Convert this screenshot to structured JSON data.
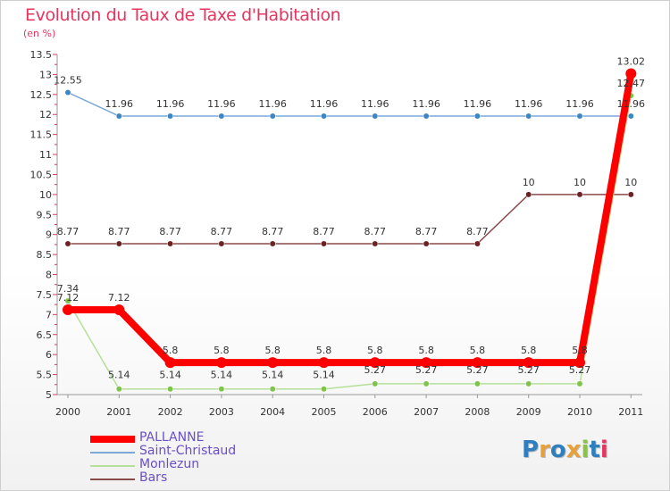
{
  "title": "Evolution du Taux de Taxe d'Habitation",
  "subtitle": "(en %)",
  "logo": {
    "text": "Proxiti",
    "letters": [
      "P",
      "r",
      "o",
      "x",
      "i",
      "t",
      "i"
    ],
    "colors": [
      "#2f7fc0",
      "#e8a13a",
      "#2f7fc0",
      "#e8a13a",
      "#8bc34a",
      "#2f7fc0",
      "#e4365f"
    ]
  },
  "chart_data": {
    "type": "line",
    "title": "Evolution du Taux de Taxe d'Habitation",
    "ylabel": "(en %)",
    "xlabel": "",
    "x": [
      "2000",
      "2001",
      "2002",
      "2003",
      "2004",
      "2005",
      "2006",
      "2007",
      "2008",
      "2009",
      "2010",
      "2011"
    ],
    "ylim": [
      5,
      13.5
    ],
    "yticks": [
      "5",
      "5.5",
      "6",
      "6.5",
      "7",
      "7.5",
      "8",
      "8.5",
      "9",
      "9.5",
      "10",
      "10.5",
      "11",
      "11.5",
      "12",
      "12.5",
      "13",
      "13.5"
    ],
    "grid": false,
    "legend_position": "bottom-left",
    "series": [
      {
        "name": "PALLANNE",
        "color": "#ff0000",
        "emphasis": true,
        "values": [
          7.12,
          7.12,
          5.8,
          5.8,
          5.8,
          5.8,
          5.8,
          5.8,
          5.8,
          5.8,
          5.8,
          13.02
        ],
        "labels": [
          "7.12",
          "7.12",
          "5.8",
          "5.8",
          "5.8",
          "5.8",
          "5.8",
          "5.8",
          "5.8",
          "5.8",
          "5.8",
          "13.02"
        ]
      },
      {
        "name": "Saint-Christaud",
        "color": "#7aa9d8",
        "marker": "#3d86c6",
        "values": [
          12.55,
          11.96,
          11.96,
          11.96,
          11.96,
          11.96,
          11.96,
          11.96,
          11.96,
          11.96,
          11.96,
          11.96
        ],
        "labels": [
          "12.55",
          "11.96",
          "11.96",
          "11.96",
          "11.96",
          "11.96",
          "11.96",
          "11.96",
          "11.96",
          "11.96",
          "11.96",
          "11.96"
        ]
      },
      {
        "name": "Monlezun",
        "color": "#b5e09a",
        "marker": "#7fc44a",
        "values": [
          7.34,
          5.14,
          5.14,
          5.14,
          5.14,
          5.14,
          5.27,
          5.27,
          5.27,
          5.27,
          5.27,
          12.47
        ],
        "labels": [
          "7.34",
          "5.14",
          "5.14",
          "5.14",
          "5.14",
          "5.14",
          "5.27",
          "5.27",
          "5.27",
          "5.27",
          "5.27",
          "12.47"
        ]
      },
      {
        "name": "Bars",
        "color": "#8a4a4a",
        "marker": "#6b2222",
        "values": [
          8.77,
          8.77,
          8.77,
          8.77,
          8.77,
          8.77,
          8.77,
          8.77,
          8.77,
          10,
          10,
          10
        ],
        "labels": [
          "8.77",
          "8.77",
          "8.77",
          "8.77",
          "8.77",
          "8.77",
          "8.77",
          "8.77",
          "8.77",
          "10",
          "10",
          "10"
        ]
      }
    ]
  }
}
